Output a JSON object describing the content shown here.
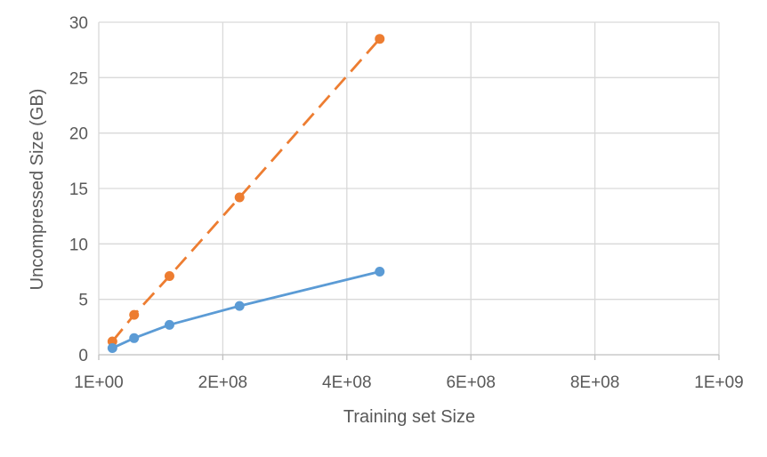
{
  "chart_data": {
    "type": "line",
    "title": "",
    "xlabel": "Training set Size",
    "ylabel": "Uncompressed Size (GB)",
    "xlim": [
      1,
      1000000000
    ],
    "ylim": [
      0,
      30
    ],
    "x_tick_values": [
      1,
      200000000,
      400000000,
      600000000,
      800000000,
      1000000000
    ],
    "x_tick_labels": [
      "1E+00",
      "2E+08",
      "4E+08",
      "6E+08",
      "8E+08",
      "1E+09"
    ],
    "y_tick_values": [
      0,
      5,
      10,
      15,
      20,
      25,
      30
    ],
    "y_tick_labels": [
      "0",
      "5",
      "10",
      "15",
      "20",
      "25",
      "30"
    ],
    "grid": true,
    "legend": "none",
    "series": [
      {
        "color": "#ED7D31",
        "line_style": "dashed",
        "x": [
          22000000,
          57000000,
          114000000,
          227000000,
          453000000
        ],
        "y": [
          1.2,
          3.6,
          7.1,
          14.2,
          28.5
        ]
      },
      {
        "color": "#5B9BD5",
        "line_style": "solid",
        "x": [
          22000000,
          57000000,
          114000000,
          227000000,
          453000000
        ],
        "y": [
          0.6,
          1.5,
          2.7,
          4.4,
          7.5
        ]
      }
    ]
  }
}
